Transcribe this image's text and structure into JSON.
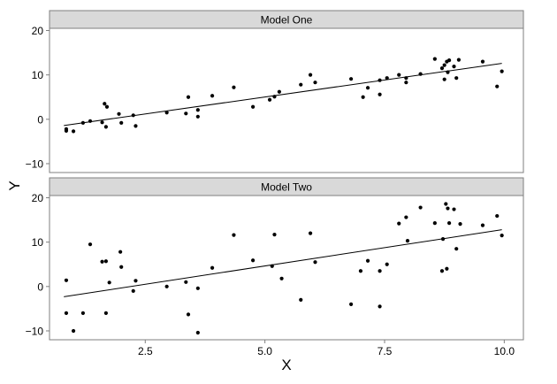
{
  "chart_data": {
    "type": "scatter",
    "xlabel": "X",
    "ylabel": "Y",
    "xlim": [
      0.5,
      10.4
    ],
    "x_ticks": [
      2.5,
      5.0,
      7.5,
      10.0
    ],
    "x_tick_labels": [
      "2.5",
      "5.0",
      "7.5",
      "10.0"
    ],
    "grid": false,
    "facets": [
      {
        "label": "Model One",
        "ylim": [
          -12,
          20.5
        ],
        "y_ticks": [
          -10,
          0,
          10,
          20
        ],
        "y_tick_labels": [
          "−10",
          "0",
          "10",
          "20"
        ],
        "fit_line": {
          "x": [
            0.8,
            9.95
          ],
          "y": [
            -1.4,
            12.6
          ]
        },
        "points": [
          {
            "x": 0.85,
            "y": -2.2
          },
          {
            "x": 0.85,
            "y": -2.6
          },
          {
            "x": 1.0,
            "y": -2.7
          },
          {
            "x": 1.2,
            "y": -0.8
          },
          {
            "x": 1.35,
            "y": -0.4
          },
          {
            "x": 1.6,
            "y": -0.7
          },
          {
            "x": 1.65,
            "y": 3.5
          },
          {
            "x": 1.7,
            "y": 2.8
          },
          {
            "x": 1.68,
            "y": -1.7
          },
          {
            "x": 1.95,
            "y": 1.2
          },
          {
            "x": 2.0,
            "y": -0.8
          },
          {
            "x": 2.25,
            "y": 0.9
          },
          {
            "x": 2.3,
            "y": -1.5
          },
          {
            "x": 2.95,
            "y": 1.5
          },
          {
            "x": 3.35,
            "y": 1.3
          },
          {
            "x": 3.4,
            "y": 5.0
          },
          {
            "x": 3.6,
            "y": 2.1
          },
          {
            "x": 3.6,
            "y": 0.6
          },
          {
            "x": 3.9,
            "y": 5.3
          },
          {
            "x": 4.35,
            "y": 7.2
          },
          {
            "x": 4.75,
            "y": 2.8
          },
          {
            "x": 5.1,
            "y": 4.4
          },
          {
            "x": 5.2,
            "y": 5.1
          },
          {
            "x": 5.3,
            "y": 6.2
          },
          {
            "x": 5.75,
            "y": 7.8
          },
          {
            "x": 5.95,
            "y": 10.0
          },
          {
            "x": 6.05,
            "y": 8.3
          },
          {
            "x": 6.8,
            "y": 9.1
          },
          {
            "x": 7.05,
            "y": 5.0
          },
          {
            "x": 7.15,
            "y": 7.1
          },
          {
            "x": 7.4,
            "y": 8.8
          },
          {
            "x": 7.4,
            "y": 5.6
          },
          {
            "x": 7.55,
            "y": 9.3
          },
          {
            "x": 7.8,
            "y": 10.0
          },
          {
            "x": 7.95,
            "y": 8.3
          },
          {
            "x": 7.95,
            "y": 9.3
          },
          {
            "x": 8.25,
            "y": 10.2
          },
          {
            "x": 8.55,
            "y": 13.6
          },
          {
            "x": 8.7,
            "y": 11.5
          },
          {
            "x": 8.75,
            "y": 12.2
          },
          {
            "x": 8.75,
            "y": 9.0
          },
          {
            "x": 8.8,
            "y": 13.0
          },
          {
            "x": 8.82,
            "y": 10.6
          },
          {
            "x": 8.85,
            "y": 13.3
          },
          {
            "x": 8.95,
            "y": 11.9
          },
          {
            "x": 9.0,
            "y": 9.3
          },
          {
            "x": 9.05,
            "y": 13.4
          },
          {
            "x": 9.55,
            "y": 13.0
          },
          {
            "x": 9.85,
            "y": 7.4
          },
          {
            "x": 9.95,
            "y": 10.8
          }
        ]
      },
      {
        "label": "Model Two",
        "ylim": [
          -12,
          20.5
        ],
        "y_ticks": [
          -10,
          0,
          10,
          20
        ],
        "y_tick_labels": [
          "−10",
          "0",
          "10",
          "20"
        ],
        "fit_line": {
          "x": [
            0.8,
            9.95
          ],
          "y": [
            -2.3,
            12.8
          ]
        },
        "points": [
          {
            "x": 0.85,
            "y": 1.4
          },
          {
            "x": 0.85,
            "y": -6.0
          },
          {
            "x": 1.0,
            "y": -10.0
          },
          {
            "x": 1.2,
            "y": -6.0
          },
          {
            "x": 1.35,
            "y": 9.5
          },
          {
            "x": 1.6,
            "y": 5.6
          },
          {
            "x": 1.68,
            "y": 5.7
          },
          {
            "x": 1.68,
            "y": -6.0
          },
          {
            "x": 1.75,
            "y": 0.9
          },
          {
            "x": 1.98,
            "y": 7.8
          },
          {
            "x": 2.0,
            "y": 4.4
          },
          {
            "x": 2.25,
            "y": -1.0
          },
          {
            "x": 2.3,
            "y": 1.3
          },
          {
            "x": 2.95,
            "y": 0.0
          },
          {
            "x": 3.35,
            "y": 1.0
          },
          {
            "x": 3.4,
            "y": -6.3
          },
          {
            "x": 3.6,
            "y": -0.4
          },
          {
            "x": 3.6,
            "y": -10.4
          },
          {
            "x": 3.9,
            "y": 4.2
          },
          {
            "x": 4.35,
            "y": 11.6
          },
          {
            "x": 4.75,
            "y": 5.9
          },
          {
            "x": 5.15,
            "y": 4.6
          },
          {
            "x": 5.2,
            "y": 11.7
          },
          {
            "x": 5.35,
            "y": 1.8
          },
          {
            "x": 5.75,
            "y": -3.0
          },
          {
            "x": 5.95,
            "y": 12.0
          },
          {
            "x": 6.05,
            "y": 5.5
          },
          {
            "x": 6.8,
            "y": -4.0
          },
          {
            "x": 7.0,
            "y": 3.5
          },
          {
            "x": 7.15,
            "y": 5.8
          },
          {
            "x": 7.4,
            "y": 3.5
          },
          {
            "x": 7.4,
            "y": -4.5
          },
          {
            "x": 7.55,
            "y": 5.0
          },
          {
            "x": 7.8,
            "y": 14.2
          },
          {
            "x": 7.95,
            "y": 15.6
          },
          {
            "x": 7.98,
            "y": 10.3
          },
          {
            "x": 8.25,
            "y": 17.8
          },
          {
            "x": 8.55,
            "y": 14.3
          },
          {
            "x": 8.7,
            "y": 3.5
          },
          {
            "x": 8.72,
            "y": 10.7
          },
          {
            "x": 8.78,
            "y": 18.6
          },
          {
            "x": 8.8,
            "y": 4.0
          },
          {
            "x": 8.82,
            "y": 17.6
          },
          {
            "x": 8.85,
            "y": 14.3
          },
          {
            "x": 8.95,
            "y": 17.4
          },
          {
            "x": 9.0,
            "y": 8.5
          },
          {
            "x": 9.08,
            "y": 14.1
          },
          {
            "x": 9.55,
            "y": 13.8
          },
          {
            "x": 9.85,
            "y": 15.9
          },
          {
            "x": 9.95,
            "y": 11.5
          }
        ]
      }
    ]
  }
}
